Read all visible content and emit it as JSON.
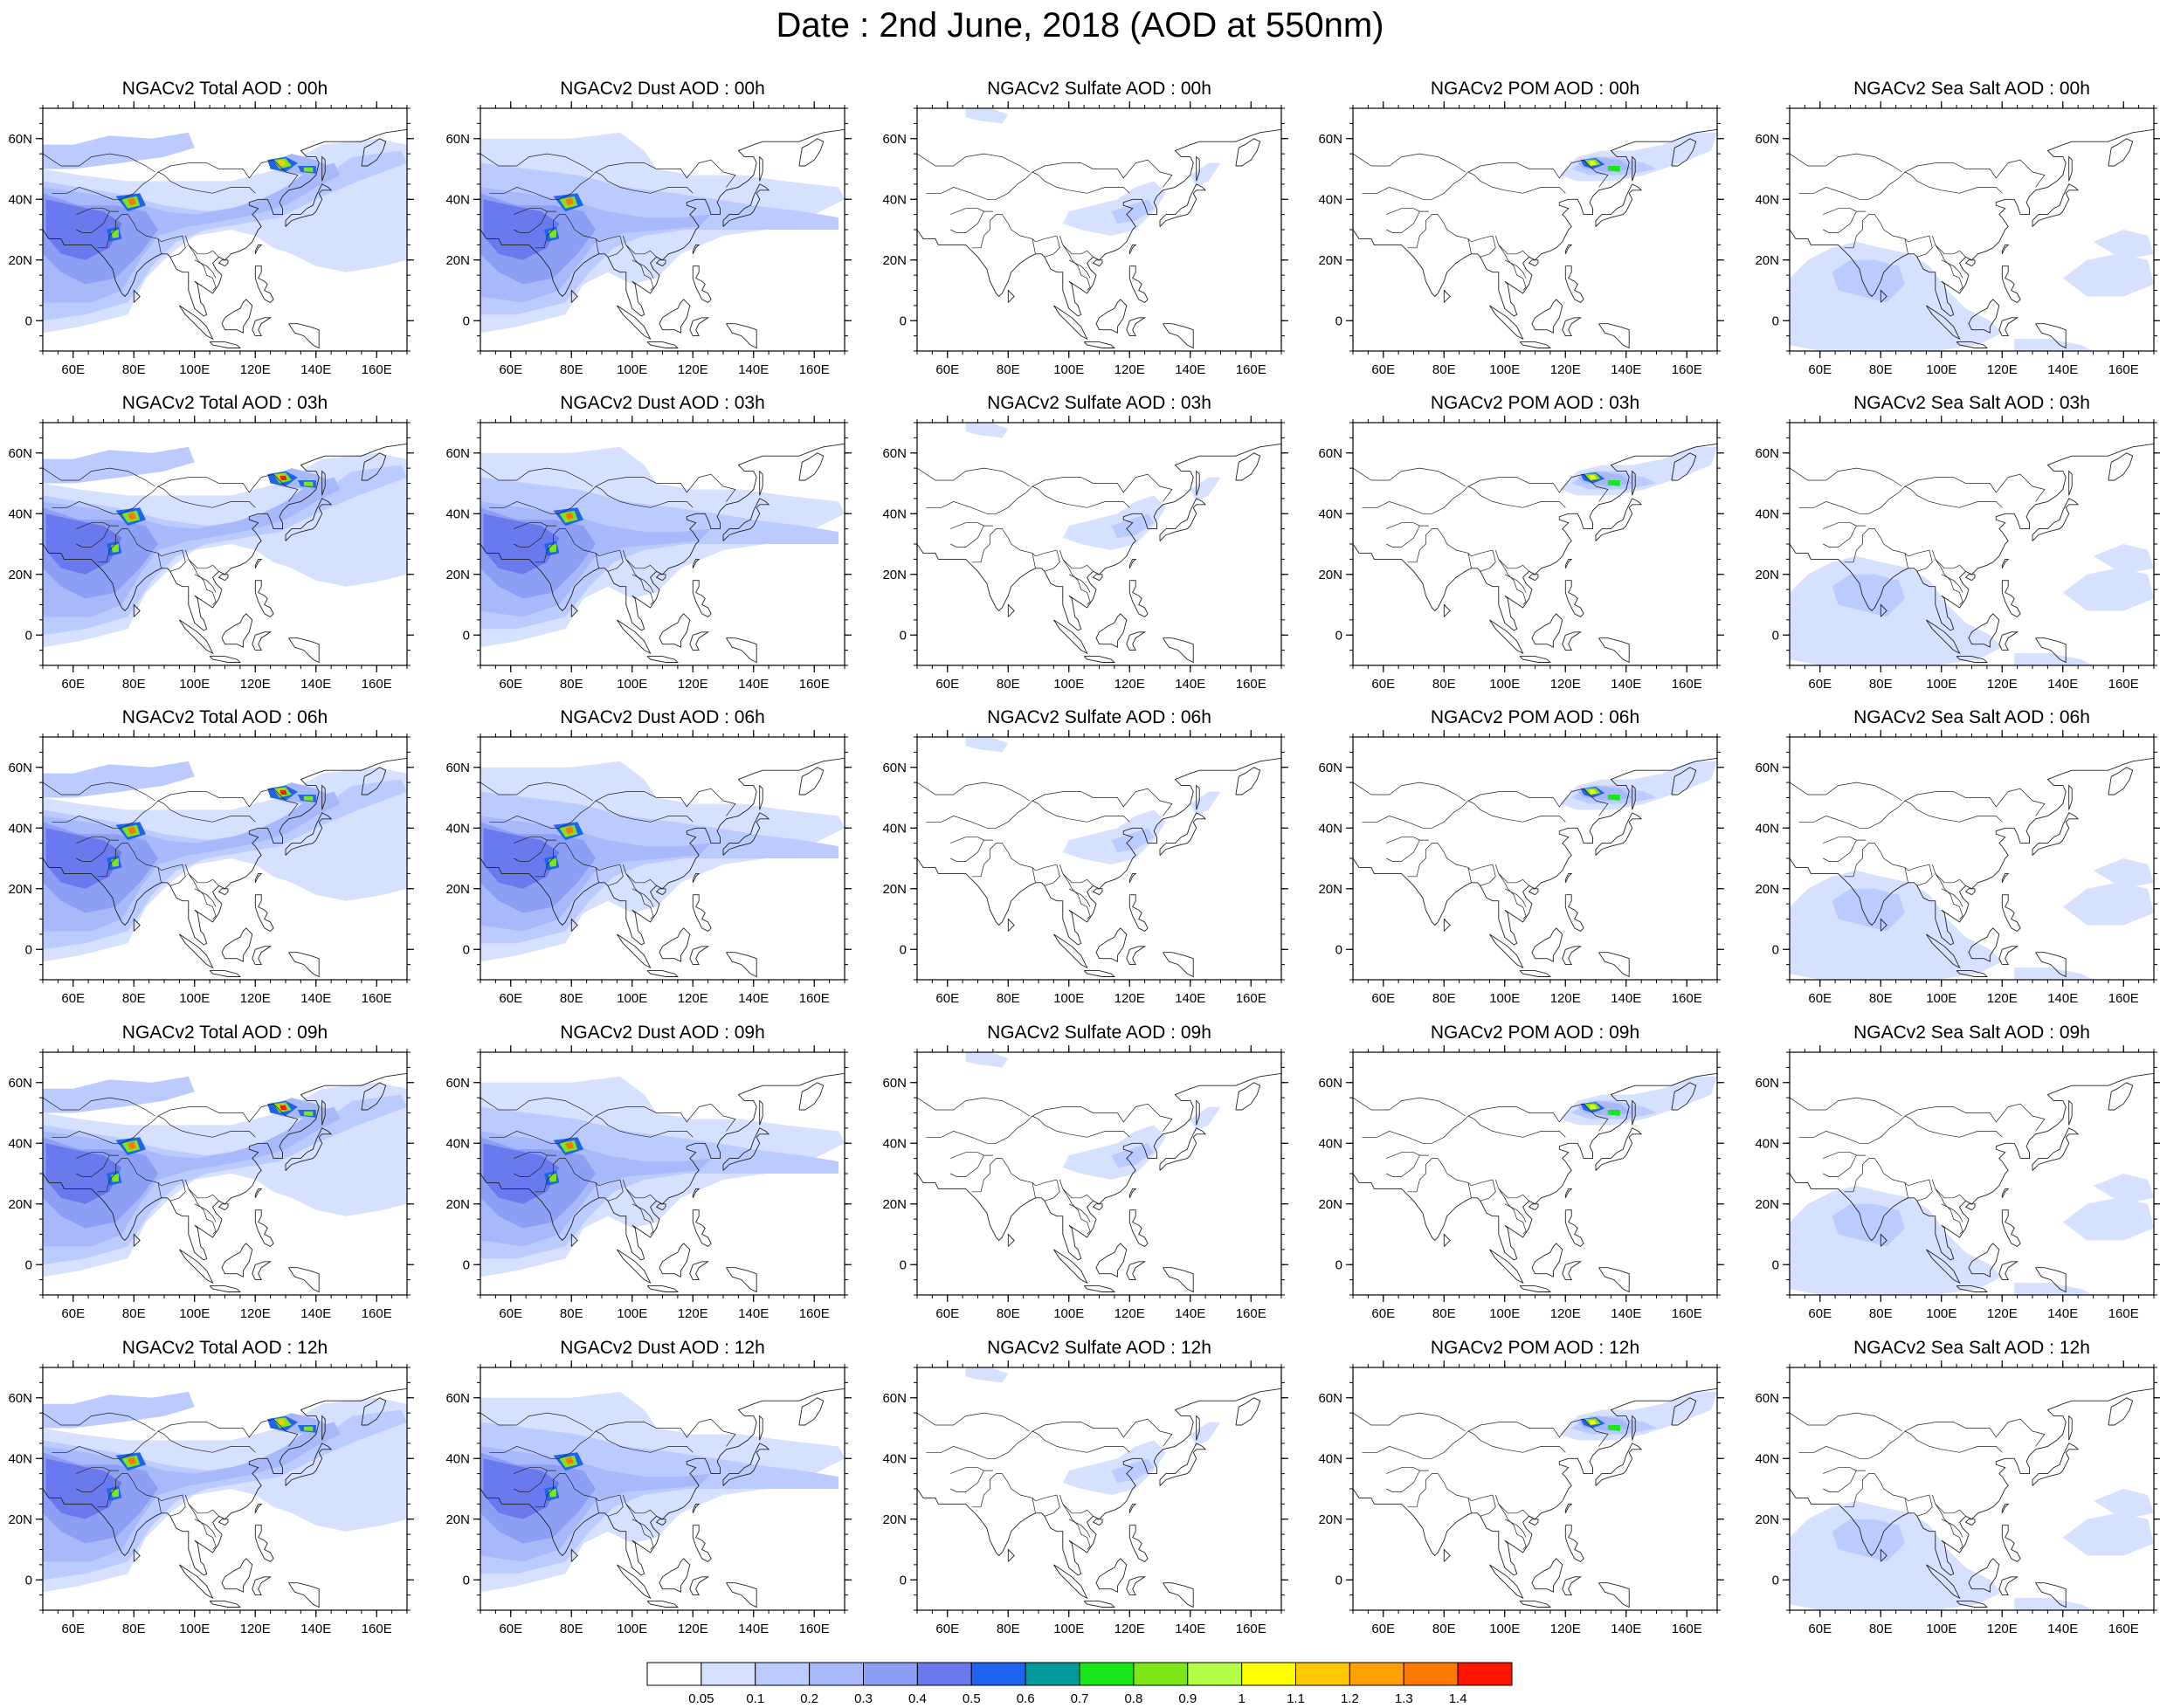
{
  "title": "Date : 2nd June, 2018 (AOD at 550nm)",
  "lat_labels": [
    "60N",
    "40N",
    "20N",
    "0"
  ],
  "lat_values": [
    60,
    40,
    20,
    0
  ],
  "lon_labels": [
    "60E",
    "80E",
    "100E",
    "120E",
    "140E",
    "160E"
  ],
  "lon_values": [
    60,
    80,
    100,
    120,
    140,
    160
  ],
  "map_extent": {
    "lon_min": 50,
    "lon_max": 170,
    "lat_min": -10,
    "lat_max": 70
  },
  "species": [
    "Total",
    "Dust",
    "Sulfate",
    "POM",
    "Sea Salt"
  ],
  "hours": [
    "00h",
    "03h",
    "06h",
    "09h",
    "12h"
  ],
  "panels": [
    [
      {
        "title": "NGACv2 Total AOD : 00h",
        "species": "Total"
      },
      {
        "title": "NGACv2 Dust AOD : 00h",
        "species": "Dust"
      },
      {
        "title": "NGACv2 Sulfate AOD : 00h",
        "species": "Sulfate"
      },
      {
        "title": "NGACv2 POM AOD : 00h",
        "species": "POM"
      },
      {
        "title": "NGACv2 Sea Salt AOD : 00h",
        "species": "Sea Salt"
      }
    ],
    [
      {
        "title": "NGACv2 Total AOD : 03h",
        "species": "Total"
      },
      {
        "title": "NGACv2 Dust AOD : 03h",
        "species": "Dust"
      },
      {
        "title": "NGACv2 Sulfate AOD : 03h",
        "species": "Sulfate"
      },
      {
        "title": "NGACv2 POM AOD : 03h",
        "species": "POM"
      },
      {
        "title": "NGACv2 Sea Salt AOD : 03h",
        "species": "Sea Salt"
      }
    ],
    [
      {
        "title": "NGACv2 Total AOD : 06h",
        "species": "Total"
      },
      {
        "title": "NGACv2 Dust AOD : 06h",
        "species": "Dust"
      },
      {
        "title": "NGACv2 Sulfate AOD : 06h",
        "species": "Sulfate"
      },
      {
        "title": "NGACv2 POM AOD : 06h",
        "species": "POM"
      },
      {
        "title": "NGACv2 Sea Salt AOD : 06h",
        "species": "Sea Salt"
      }
    ],
    [
      {
        "title": "NGACv2 Total AOD : 09h",
        "species": "Total"
      },
      {
        "title": "NGACv2 Dust AOD : 09h",
        "species": "Dust"
      },
      {
        "title": "NGACv2 Sulfate AOD : 09h",
        "species": "Sulfate"
      },
      {
        "title": "NGACv2 POM AOD : 09h",
        "species": "POM"
      },
      {
        "title": "NGACv2 Sea Salt  AOD : 09h",
        "species": "Sea Salt"
      }
    ],
    [
      {
        "title": "NGACv2 Total AOD  : 12h",
        "species": "Total"
      },
      {
        "title": "NGACv2 Dust AOD : 12h",
        "species": "Dust"
      },
      {
        "title": "NGACv2 Sulfate AOD : 12h",
        "species": "Sulfate"
      },
      {
        "title": "NGACv2 POM  AOD : 12h",
        "species": "POM"
      },
      {
        "title": "NGACv2 Sea Salt  AOD : 12h",
        "species": "Sea Salt"
      }
    ]
  ],
  "colorbar": {
    "labels": [
      "0.05",
      "0.1",
      "0.2",
      "0.3",
      "0.4",
      "0.5",
      "0.6",
      "0.7",
      "0.8",
      "0.9",
      "1",
      "1.1",
      "1.2",
      "1.3",
      "1.4"
    ],
    "colors": [
      "#ffffff",
      "#d6e0ff",
      "#bccbff",
      "#a7b8fb",
      "#8c9ff5",
      "#6a79ee",
      "#1e64f0",
      "#009a9a",
      "#19e619",
      "#7de619",
      "#b4ff46",
      "#ffff00",
      "#ffc800",
      "#ffa000",
      "#ff7800",
      "#ff1400"
    ]
  },
  "plume_colors": {
    "v01": "#d6e0ff",
    "v02": "#bccbff",
    "v03": "#a7b8fb",
    "v04": "#8c9ff5",
    "v05": "#6a79ee",
    "v06": "#1e64f0",
    "v08": "#19e619",
    "v09": "#7de619",
    "v10": "#b4ff46",
    "v11": "#ffff00",
    "v12": "#ffc800",
    "v14": "#ff7800",
    "v15": "#ff1400"
  }
}
